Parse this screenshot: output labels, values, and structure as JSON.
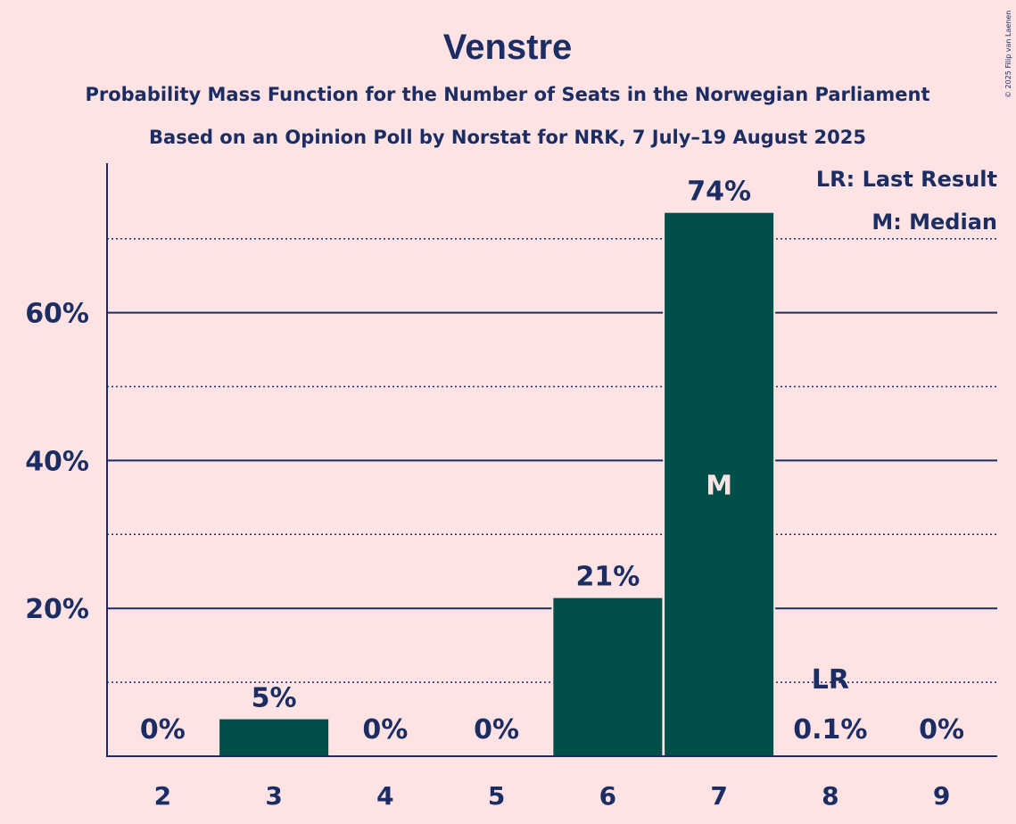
{
  "header": {
    "title": "Venstre",
    "subtitle1": "Probability Mass Function for the Number of Seats in the Norwegian Parliament",
    "subtitle2": "Based on an Opinion Poll by Norstat for NRK, 7 July–19 August 2025",
    "copyright": "© 2025 Filip van Laenen"
  },
  "legend": {
    "last_result": "LR: Last Result",
    "median": "M: Median"
  },
  "colors": {
    "background": "#FDE3E4",
    "bar": "#004F49",
    "text": "#1B2D63"
  },
  "chart_data": {
    "type": "bar",
    "categories": [
      "2",
      "3",
      "4",
      "5",
      "6",
      "7",
      "8",
      "9"
    ],
    "values": [
      0,
      5,
      0,
      0,
      21.4,
      73.5,
      0.1,
      0
    ],
    "labels": [
      "0%",
      "5%",
      "0%",
      "0%",
      "21%",
      "74%",
      "0.1%",
      "0%"
    ],
    "ylim": [
      0,
      80
    ],
    "y_major_ticks": [
      20,
      40,
      60
    ],
    "y_major_labels": [
      "20%",
      "40%",
      "60%"
    ],
    "y_minor_ticks": [
      10,
      30,
      50,
      70
    ],
    "grid": true,
    "median_category": "7",
    "median_marker": "M",
    "last_result_category": "8",
    "last_result_marker": "LR",
    "legend_position": "top-right"
  }
}
